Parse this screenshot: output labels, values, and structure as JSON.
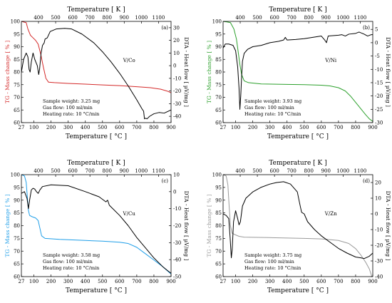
{
  "figure": {
    "bottom_axis_label": "Temperature [ °C ]",
    "top_axis_label": "Temperature [ K ]",
    "left_axis_label": "TG - Mass change [ % ]",
    "right_axis_label": "DTA - Heat flow [ µV/mg ]",
    "bottom_ticks": [
      27,
      100,
      200,
      300,
      400,
      500,
      600,
      700,
      800,
      900
    ],
    "top_ticks": [
      400,
      500,
      600,
      700,
      800,
      900,
      1000,
      1100
    ],
    "dta_color": "#000000"
  },
  "chart_data": [
    {
      "type": "line",
      "panel": "(a)",
      "label": "V/Co",
      "tg_color": "#d42a2a",
      "xlim": [
        27,
        900
      ],
      "ylim_left": [
        60,
        100
      ],
      "ylim_right": [
        -45,
        35
      ],
      "left_ticks": [
        60,
        65,
        70,
        75,
        80,
        85,
        90,
        95,
        100
      ],
      "right_ticks": [
        -40,
        -30,
        -20,
        -10,
        0,
        10,
        20,
        30
      ],
      "info": [
        "Sample weight: 3.25 mg",
        "Gas flow: 100 ml/min",
        "Heating rate: 10 °C/min"
      ],
      "series": [
        {
          "axis": "left",
          "points": [
            [
              27,
              100
            ],
            [
              55,
              99.5
            ],
            [
              65,
              97
            ],
            [
              80,
              94.5
            ],
            [
              95,
              93.5
            ],
            [
              110,
              92.5
            ],
            [
              125,
              91
            ],
            [
              140,
              87
            ],
            [
              155,
              82
            ],
            [
              170,
              77.5
            ],
            [
              185,
              76
            ],
            [
              220,
              75.8
            ],
            [
              300,
              75.5
            ],
            [
              400,
              75.2
            ],
            [
              500,
              74.9
            ],
            [
              600,
              74.6
            ],
            [
              700,
              74.2
            ],
            [
              780,
              73.8
            ],
            [
              840,
              73.2
            ],
            [
              880,
              72.4
            ],
            [
              900,
              71.8
            ]
          ]
        },
        {
          "axis": "right",
          "points": [
            [
              27,
              -5
            ],
            [
              40,
              5
            ],
            [
              55,
              10
            ],
            [
              65,
              7
            ],
            [
              72,
              -3
            ],
            [
              78,
              -5
            ],
            [
              85,
              3
            ],
            [
              95,
              10
            ],
            [
              105,
              5
            ],
            [
              120,
              0
            ],
            [
              128,
              -7
            ],
            [
              133,
              -3
            ],
            [
              142,
              10
            ],
            [
              150,
              16
            ],
            [
              160,
              18
            ],
            [
              165,
              21
            ],
            [
              178,
              22
            ],
            [
              195,
              27
            ],
            [
              230,
              29
            ],
            [
              280,
              29.5
            ],
            [
              320,
              29
            ],
            [
              380,
              25
            ],
            [
              450,
              18
            ],
            [
              500,
              11
            ],
            [
              550,
              3
            ],
            [
              600,
              -6
            ],
            [
              650,
              -16
            ],
            [
              700,
              -27
            ],
            [
              730,
              -34
            ],
            [
              740,
              -36
            ],
            [
              745,
              -42
            ],
            [
              752,
              -41.5
            ],
            [
              760,
              -42
            ],
            [
              775,
              -40
            ],
            [
              800,
              -38
            ],
            [
              830,
              -37
            ],
            [
              860,
              -37.5
            ],
            [
              900,
              -35
            ]
          ]
        }
      ]
    },
    {
      "type": "line",
      "panel": "(b)",
      "label": "V/Ni",
      "tg_color": "#2ca02c",
      "xlim": [
        27,
        900
      ],
      "ylim_left": [
        60,
        100
      ],
      "ylim_right": [
        -30,
        8
      ],
      "left_ticks": [
        60,
        65,
        70,
        75,
        80,
        85,
        90,
        95,
        100
      ],
      "right_ticks": [
        -30,
        -25,
        -20,
        -15,
        -10,
        -5,
        0,
        5
      ],
      "info": [
        "Sample weight: 3.93 mg",
        "Gas flow: 100 ml/min",
        "Heating rate: 10 °C/min"
      ],
      "series": [
        {
          "axis": "left",
          "points": [
            [
              27,
              100
            ],
            [
              50,
              99.8
            ],
            [
              70,
              99.5
            ],
            [
              90,
              97
            ],
            [
              105,
              93
            ],
            [
              115,
              88
            ],
            [
              125,
              83
            ],
            [
              135,
              79
            ],
            [
              150,
              76.5
            ],
            [
              175,
              75.8
            ],
            [
              250,
              75.3
            ],
            [
              400,
              75.1
            ],
            [
              500,
              75
            ],
            [
              600,
              74.8
            ],
            [
              650,
              74.5
            ],
            [
              700,
              73.8
            ],
            [
              740,
              72.5
            ],
            [
              770,
              70.5
            ],
            [
              800,
              68
            ],
            [
              830,
              65.5
            ],
            [
              860,
              63
            ],
            [
              880,
              61.5
            ],
            [
              900,
              60.5
            ]
          ]
        },
        {
          "axis": "right",
          "points": [
            [
              27,
              -2
            ],
            [
              40,
              -0.5
            ],
            [
              60,
              -0.5
            ],
            [
              85,
              -1
            ],
            [
              100,
              -3
            ],
            [
              112,
              -9
            ],
            [
              120,
              -17
            ],
            [
              125,
              -25
            ],
            [
              130,
              -20
            ],
            [
              135,
              -13
            ],
            [
              140,
              -7
            ],
            [
              150,
              -4
            ],
            [
              170,
              -2.5
            ],
            [
              200,
              -1.5
            ],
            [
              250,
              -1
            ],
            [
              300,
              0
            ],
            [
              350,
              0.5
            ],
            [
              380,
              1
            ],
            [
              390,
              2
            ],
            [
              400,
              1
            ],
            [
              450,
              1.2
            ],
            [
              500,
              1.5
            ],
            [
              550,
              2
            ],
            [
              600,
              2.5
            ],
            [
              620,
              1
            ],
            [
              630,
              0
            ],
            [
              640,
              2.5
            ],
            [
              700,
              2.8
            ],
            [
              720,
              3
            ],
            [
              740,
              2.5
            ],
            [
              760,
              3.2
            ],
            [
              800,
              3.5
            ],
            [
              820,
              4
            ],
            [
              850,
              3.2
            ],
            [
              870,
              2.5
            ],
            [
              890,
              3
            ],
            [
              900,
              3
            ]
          ]
        }
      ]
    },
    {
      "type": "line",
      "panel": "(c)",
      "label": "V/Cu",
      "tg_color": "#1e9ee8",
      "xlim": [
        27,
        900
      ],
      "ylim_left": [
        60,
        100
      ],
      "ylim_right": [
        -50,
        10
      ],
      "left_ticks": [
        60,
        65,
        70,
        75,
        80,
        85,
        90,
        95,
        100
      ],
      "right_ticks": [
        -50,
        -40,
        -30,
        -20,
        -10,
        0,
        10
      ],
      "info": [
        "Sample weight: 3.58 mg",
        "Gas flow: 100 ml/min",
        "Heating rate: 10 °C/min"
      ],
      "series": [
        {
          "axis": "left",
          "points": [
            [
              27,
              100
            ],
            [
              45,
              99.5
            ],
            [
              55,
              97
            ],
            [
              62,
              91
            ],
            [
              68,
              86
            ],
            [
              75,
              84
            ],
            [
              90,
              83.5
            ],
            [
              110,
              83
            ],
            [
              125,
              82
            ],
            [
              135,
              79
            ],
            [
              145,
              76
            ],
            [
              165,
              75
            ],
            [
              250,
              74.6
            ],
            [
              400,
              74.2
            ],
            [
              500,
              73.9
            ],
            [
              600,
              73.5
            ],
            [
              650,
              73
            ],
            [
              700,
              71.5
            ],
            [
              750,
              69
            ],
            [
              800,
              66.5
            ],
            [
              850,
              64
            ],
            [
              900,
              61
            ]
          ]
        },
        {
          "axis": "right",
          "points": [
            [
              27,
              -1
            ],
            [
              45,
              0
            ],
            [
              60,
              -4
            ],
            [
              68,
              -10
            ],
            [
              75,
              -5
            ],
            [
              85,
              1
            ],
            [
              95,
              2
            ],
            [
              105,
              1.5
            ],
            [
              115,
              0
            ],
            [
              125,
              -1
            ],
            [
              135,
              1
            ],
            [
              150,
              3
            ],
            [
              200,
              4
            ],
            [
              300,
              3.5
            ],
            [
              400,
              0
            ],
            [
              480,
              -3
            ],
            [
              520,
              -6
            ],
            [
              530,
              -5
            ],
            [
              540,
              -8
            ],
            [
              600,
              -14
            ],
            [
              650,
              -20
            ],
            [
              700,
              -27
            ],
            [
              750,
              -33
            ],
            [
              800,
              -39
            ],
            [
              850,
              -44
            ],
            [
              880,
              -46.5
            ],
            [
              900,
              -48
            ]
          ]
        }
      ]
    },
    {
      "type": "line",
      "panel": "(d)",
      "label": "V/Zn",
      "tg_color": "#9a9a9a",
      "xlim": [
        27,
        900
      ],
      "ylim_left": [
        60,
        100
      ],
      "ylim_right": [
        -40,
        25
      ],
      "left_ticks": [
        60,
        65,
        70,
        75,
        80,
        85,
        90,
        95,
        100
      ],
      "right_ticks": [
        -40,
        -30,
        -20,
        -10,
        0,
        10,
        20
      ],
      "info": [
        "Sample weight: 3.75 mg",
        "Gas flow: 100 ml/min",
        "Heating rate: 10 °C/min"
      ],
      "series": [
        {
          "axis": "left",
          "points": [
            [
              27,
              100
            ],
            [
              45,
              99.5
            ],
            [
              55,
              96
            ],
            [
              62,
              88
            ],
            [
              70,
              80
            ],
            [
              80,
              77
            ],
            [
              95,
              76.5
            ],
            [
              120,
              75.8
            ],
            [
              150,
              75.5
            ],
            [
              300,
              75.3
            ],
            [
              500,
              75
            ],
            [
              600,
              74.8
            ],
            [
              700,
              74.2
            ],
            [
              760,
              73
            ],
            [
              800,
              71
            ],
            [
              830,
              68.5
            ],
            [
              860,
              65.5
            ],
            [
              880,
              63
            ],
            [
              900,
              59
            ]
          ]
        },
        {
          "axis": "right",
          "points": [
            [
              27,
              0
            ],
            [
              45,
              -1
            ],
            [
              60,
              -3
            ],
            [
              68,
              -15
            ],
            [
              75,
              -28
            ],
            [
              80,
              -23
            ],
            [
              88,
              -5
            ],
            [
              100,
              2
            ],
            [
              112,
              -3
            ],
            [
              120,
              -7
            ],
            [
              128,
              -5
            ],
            [
              140,
              5
            ],
            [
              160,
              10
            ],
            [
              200,
              14
            ],
            [
              250,
              17
            ],
            [
              300,
              19
            ],
            [
              340,
              20
            ],
            [
              380,
              20.5
            ],
            [
              420,
              19
            ],
            [
              460,
              14
            ],
            [
              475,
              6
            ],
            [
              485,
              1
            ],
            [
              500,
              0
            ],
            [
              520,
              -5
            ],
            [
              560,
              -10
            ],
            [
              600,
              -14
            ],
            [
              650,
              -18
            ],
            [
              700,
              -22
            ],
            [
              750,
              -25
            ],
            [
              800,
              -27.5
            ],
            [
              830,
              -28
            ],
            [
              850,
              -28.5
            ],
            [
              880,
              -27
            ],
            [
              900,
              -25
            ]
          ]
        }
      ]
    }
  ]
}
